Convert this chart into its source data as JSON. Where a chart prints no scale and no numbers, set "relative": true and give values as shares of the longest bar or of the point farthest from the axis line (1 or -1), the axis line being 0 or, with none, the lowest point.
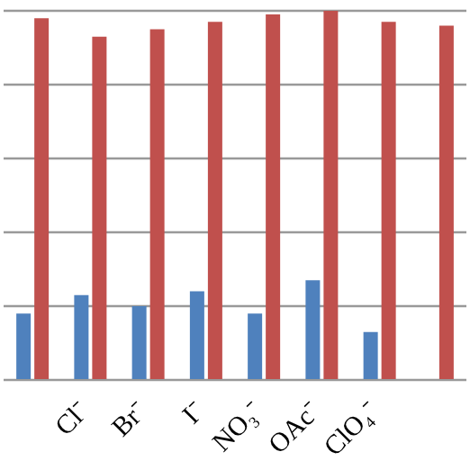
{
  "chart_data": {
    "type": "bar",
    "relative": true,
    "grid": "y",
    "categories": [
      null,
      "Cl⁻",
      "Br⁻",
      "I⁻",
      "NO₃⁻",
      "OAc⁻",
      "ClO₄⁻",
      null
    ],
    "series": [
      {
        "color": "#4f81bd",
        "values": [
          0.18,
          0.23,
          0.2,
          0.24,
          0.18,
          0.27,
          0.13,
          null
        ]
      },
      {
        "color": "#c0504d",
        "values": [
          0.98,
          0.93,
          0.95,
          0.97,
          0.99,
          1,
          0.97,
          0.96
        ]
      }
    ]
  }
}
